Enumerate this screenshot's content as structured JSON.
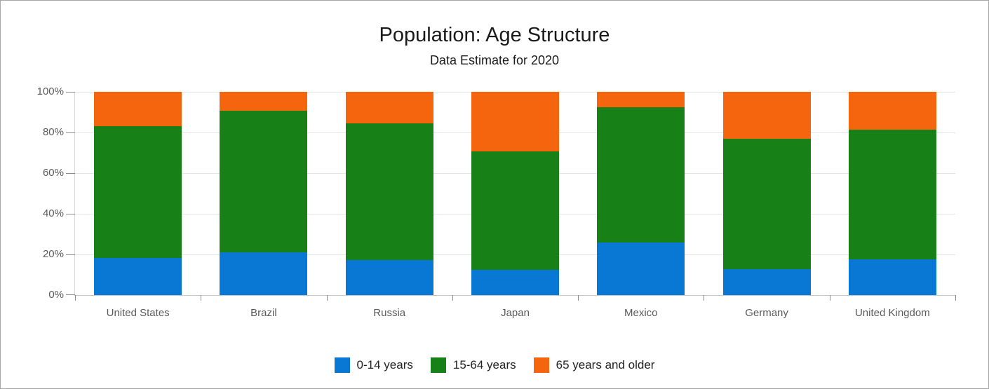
{
  "window": {
    "background": "#ffffff",
    "border_color": "#a6a6a6"
  },
  "chart_data": {
    "type": "bar",
    "stacked": true,
    "stacking": "percent",
    "title": "Population: Age Structure",
    "subtitle": "Data Estimate for 2020",
    "categories": [
      "United States",
      "Brazil",
      "Russia",
      "Japan",
      "Mexico",
      "Germany",
      "United Kingdom"
    ],
    "series": [
      {
        "name": "0-14 years",
        "color": "#0878d4",
        "values": [
          18.46,
          21.11,
          17.24,
          12.49,
          26.01,
          12.89,
          17.63
        ]
      },
      {
        "name": "15-64 years",
        "color": "#178017",
        "values": [
          64.96,
          69.68,
          67.23,
          58.33,
          66.32,
          64.13,
          63.89
        ]
      },
      {
        "name": "65 years and older",
        "color": "#f5650d",
        "values": [
          16.85,
          9.21,
          15.53,
          29.18,
          7.67,
          22.99,
          18.48
        ]
      }
    ],
    "xlabel": "",
    "ylabel": "",
    "ylim": [
      0,
      100
    ],
    "y_tick_labels": [
      "0%",
      "20%",
      "40%",
      "60%",
      "80%",
      "100%"
    ],
    "grid": true,
    "grid_color": "#e4e4e4",
    "axis_tick_color": "#8c8c8c",
    "axis_label_color": "#5a5a5a",
    "legend_position": "bottom"
  }
}
